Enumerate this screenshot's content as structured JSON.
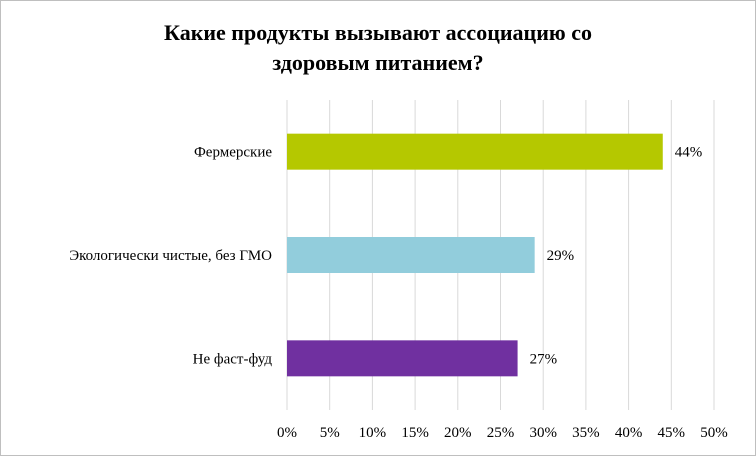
{
  "chart_data": {
    "type": "bar",
    "orientation": "horizontal",
    "title_lines": [
      "Какие продукты вызывают ассоциацию со",
      "здоровым питанием?"
    ],
    "categories": [
      "Фермерские",
      "Экологически чистые, без ГМО",
      "Не фаст-фуд"
    ],
    "values": [
      44,
      29,
      27
    ],
    "data_labels": [
      "44%",
      "29%",
      "27%"
    ],
    "colors": [
      "#b5c800",
      "#92cddc",
      "#7030a0"
    ],
    "xlim": [
      0,
      50
    ],
    "x_ticks": [
      0,
      5,
      10,
      15,
      20,
      25,
      30,
      35,
      40,
      45,
      50
    ],
    "x_tick_labels": [
      "0%",
      "5%",
      "10%",
      "15%",
      "20%",
      "25%",
      "30%",
      "35%",
      "40%",
      "45%",
      "50%"
    ],
    "grid": true,
    "legend": "none"
  }
}
